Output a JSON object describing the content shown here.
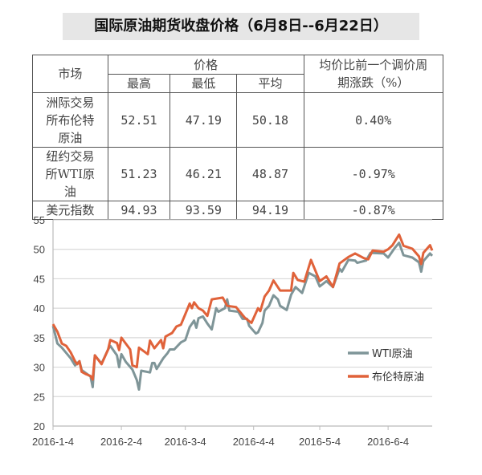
{
  "title": "国际原油期货收盘价格（6月8日--6月22日）",
  "table": {
    "headers": {
      "market": "市场",
      "price": "价格",
      "high": "最高",
      "low": "最低",
      "avg": "平均",
      "change": "均价比前一个调价周期涨跌（%）"
    },
    "rows": [
      {
        "market": "洲际交易所布伦特原油",
        "high": "52.51",
        "low": "47.19",
        "avg": "50.18",
        "change": "0.40%"
      },
      {
        "market": "纽约交易所WTI原油",
        "high": "51.23",
        "low": "46.21",
        "avg": "48.87",
        "change": "-0.97%"
      },
      {
        "market": "美元指数",
        "high": "94.93",
        "low": "93.59",
        "avg": "94.19",
        "change": "-0.87%"
      }
    ]
  },
  "chart_data": {
    "type": "line",
    "title": "",
    "xlabel": "",
    "ylabel": "",
    "x_unit": "days since 2016-1-4",
    "xlim": [
      0,
      172
    ],
    "ylim": [
      20,
      55
    ],
    "yticks": [
      "20",
      "25",
      "30",
      "35",
      "40",
      "45",
      "50",
      "55"
    ],
    "xticks": [
      {
        "label": "2016-1-4",
        "day": 0
      },
      {
        "label": "2016-2-4",
        "day": 31
      },
      {
        "label": "2016-3-4",
        "day": 60
      },
      {
        "label": "2016-4-4",
        "day": 91
      },
      {
        "label": "2016-5-4",
        "day": 121
      },
      {
        "label": "2016-6-4",
        "day": 152
      }
    ],
    "grid": true,
    "legend": "right",
    "series": [
      {
        "name": "WTI原油",
        "color": "#7f9598",
        "points": [
          [
            0,
            37
          ],
          [
            2,
            34
          ],
          [
            4,
            33.3
          ],
          [
            8,
            31.5
          ],
          [
            10,
            30.3
          ],
          [
            12,
            31
          ],
          [
            13,
            29.5
          ],
          [
            17,
            28.4
          ],
          [
            18,
            26.6
          ],
          [
            19,
            32
          ],
          [
            22,
            30.6
          ],
          [
            25,
            33
          ],
          [
            26,
            33.6
          ],
          [
            29,
            32
          ],
          [
            30,
            30
          ],
          [
            31,
            32.2
          ],
          [
            33,
            30.9
          ],
          [
            36,
            29.6
          ],
          [
            38,
            27.8
          ],
          [
            39,
            26.2
          ],
          [
            40,
            29.4
          ],
          [
            44,
            29.1
          ],
          [
            45,
            30.7
          ],
          [
            46,
            30.7
          ],
          [
            47,
            29.7
          ],
          [
            50,
            31.5
          ],
          [
            52,
            32.4
          ],
          [
            53,
            33
          ],
          [
            55,
            33
          ],
          [
            58,
            34.2
          ],
          [
            60,
            34.6
          ],
          [
            62,
            36.8
          ],
          [
            64,
            37.9
          ],
          [
            65,
            36.7
          ],
          [
            66,
            38.3
          ],
          [
            68,
            38.6
          ],
          [
            70,
            37.4
          ],
          [
            72,
            36.4
          ],
          [
            74,
            40
          ],
          [
            75,
            39.4
          ],
          [
            78,
            40
          ],
          [
            79,
            41.5
          ],
          [
            80,
            39.6
          ],
          [
            84,
            39.4
          ],
          [
            86,
            38.2
          ],
          [
            88,
            38.2
          ],
          [
            89,
            37
          ],
          [
            92,
            35.7
          ],
          [
            93,
            35.9
          ],
          [
            95,
            37.5
          ],
          [
            96,
            39.6
          ],
          [
            98,
            40.4
          ],
          [
            100,
            42.2
          ],
          [
            102,
            41.5
          ],
          [
            103,
            40.4
          ],
          [
            106,
            39.7
          ],
          [
            108,
            42.3
          ],
          [
            110,
            43.6
          ],
          [
            113,
            42.6
          ],
          [
            116,
            46
          ],
          [
            119,
            45.4
          ],
          [
            121,
            43.7
          ],
          [
            124,
            44.6
          ],
          [
            127,
            43.6
          ],
          [
            130,
            46.7
          ],
          [
            131,
            46.2
          ],
          [
            134,
            48.2
          ],
          [
            137,
            48.1
          ],
          [
            138,
            47.7
          ],
          [
            142,
            48.1
          ],
          [
            144,
            49.4
          ],
          [
            150,
            49.3
          ],
          [
            152,
            48.6
          ],
          [
            155,
            50.2
          ],
          [
            157,
            51.1
          ],
          [
            159,
            49
          ],
          [
            163,
            48.6
          ],
          [
            166,
            47.8
          ],
          [
            167,
            46.2
          ],
          [
            168,
            48
          ],
          [
            171,
            49.3
          ],
          [
            172,
            48.9
          ]
        ]
      },
      {
        "name": "布伦特原油",
        "color": "#e0623a",
        "points": [
          [
            0,
            37.3
          ],
          [
            2,
            36
          ],
          [
            4,
            34
          ],
          [
            6,
            33.6
          ],
          [
            8,
            32.5
          ],
          [
            10,
            31
          ],
          [
            11,
            30.5
          ],
          [
            12,
            31
          ],
          [
            13,
            29.2
          ],
          [
            15,
            28.8
          ],
          [
            17,
            28.5
          ],
          [
            18,
            27.9
          ],
          [
            19,
            32
          ],
          [
            22,
            30.5
          ],
          [
            25,
            33
          ],
          [
            26,
            34.6
          ],
          [
            29,
            34.1
          ],
          [
            30,
            32.9
          ],
          [
            31,
            35
          ],
          [
            35,
            33
          ],
          [
            36,
            30.3
          ],
          [
            38,
            30
          ],
          [
            39,
            33.3
          ],
          [
            43,
            32.2
          ],
          [
            44,
            34.5
          ],
          [
            46,
            33.2
          ],
          [
            49,
            34.6
          ],
          [
            50,
            33.2
          ],
          [
            51,
            35.2
          ],
          [
            54,
            35.8
          ],
          [
            56,
            36.9
          ],
          [
            58,
            37.2
          ],
          [
            60,
            39
          ],
          [
            62,
            40.8
          ],
          [
            63,
            40
          ],
          [
            64,
            41
          ],
          [
            66,
            40
          ],
          [
            68,
            39.6
          ],
          [
            70,
            38.7
          ],
          [
            72,
            41.5
          ],
          [
            77,
            41.8
          ],
          [
            79,
            40.4
          ],
          [
            83,
            40.2
          ],
          [
            85,
            39.3
          ],
          [
            87,
            38.4
          ],
          [
            90,
            37.5
          ],
          [
            93,
            40
          ],
          [
            94,
            39.5
          ],
          [
            96,
            42
          ],
          [
            98,
            43
          ],
          [
            100,
            44.7
          ],
          [
            103,
            43
          ],
          [
            108,
            43
          ],
          [
            109,
            46
          ],
          [
            111,
            44.8
          ],
          [
            114,
            44.5
          ],
          [
            117,
            48.2
          ],
          [
            121,
            44.6
          ],
          [
            124,
            45.4
          ],
          [
            127,
            43.6
          ],
          [
            130,
            47.6
          ],
          [
            134,
            48.7
          ],
          [
            137,
            49.3
          ],
          [
            141,
            48.5
          ],
          [
            143,
            48.3
          ],
          [
            145,
            49.8
          ],
          [
            150,
            49.6
          ],
          [
            152,
            50
          ],
          [
            154,
            50.7
          ],
          [
            157,
            52.5
          ],
          [
            159,
            50.6
          ],
          [
            163,
            50.1
          ],
          [
            166,
            48.8
          ],
          [
            167,
            47.5
          ],
          [
            168,
            49.4
          ],
          [
            171,
            50.7
          ],
          [
            172,
            49.8
          ]
        ]
      }
    ]
  }
}
